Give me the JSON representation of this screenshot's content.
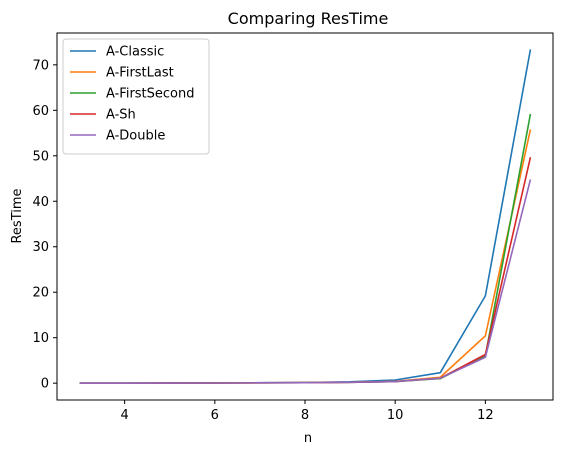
{
  "chart_data": {
    "type": "line",
    "title": "Comparing ResTime",
    "xlabel": "n",
    "ylabel": "ResTime",
    "xlim": [
      2.5,
      13.5
    ],
    "ylim": [
      -3.7,
      77.0
    ],
    "xticks": [
      4,
      6,
      8,
      10,
      12
    ],
    "yticks": [
      0,
      10,
      20,
      30,
      40,
      50,
      60,
      70
    ],
    "grid": false,
    "legend_position": "top-left",
    "x": [
      3,
      4,
      5,
      6,
      7,
      8,
      9,
      10,
      11,
      12,
      13
    ],
    "series": [
      {
        "name": "A-Classic",
        "color": "#1f77b4",
        "values": [
          0.0,
          0.0,
          0.02,
          0.05,
          0.1,
          0.15,
          0.3,
          0.7,
          2.3,
          19.2,
          73.4
        ]
      },
      {
        "name": "A-FirstLast",
        "color": "#ff7f0e",
        "values": [
          0.0,
          0.0,
          0.02,
          0.04,
          0.08,
          0.12,
          0.2,
          0.4,
          1.3,
          10.4,
          55.8
        ]
      },
      {
        "name": "A-FirstSecond",
        "color": "#2ca02c",
        "values": [
          0.0,
          0.0,
          0.02,
          0.04,
          0.07,
          0.1,
          0.18,
          0.35,
          1.0,
          6.0,
          59.2
        ]
      },
      {
        "name": "A-Sh",
        "color": "#d62728",
        "values": [
          0.0,
          0.0,
          0.02,
          0.04,
          0.07,
          0.1,
          0.18,
          0.35,
          1.1,
          6.3,
          49.7
        ]
      },
      {
        "name": "A-Double",
        "color": "#9467bd",
        "values": [
          0.0,
          0.0,
          0.02,
          0.04,
          0.07,
          0.1,
          0.18,
          0.35,
          1.1,
          5.7,
          44.8
        ]
      }
    ]
  }
}
